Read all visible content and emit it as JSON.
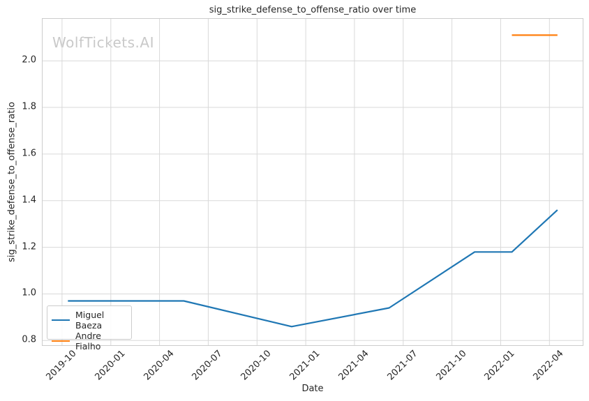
{
  "watermark": "WolfTickets.AI",
  "chart_data": {
    "type": "line",
    "title": "sig_strike_defense_to_offense_ratio over time",
    "xlabel": "Date",
    "ylabel": "sig_strike_defense_to_offense_ratio",
    "grid": true,
    "background": "#ffffff",
    "grid_color": "#d9d9d9",
    "spine_color": "#cccccc",
    "text_color": "#262626",
    "watermark_color": "#c9c9c9",
    "x_tick_labels": [
      "2019-10",
      "2020-01",
      "2020-04",
      "2020-07",
      "2020-10",
      "2021-01",
      "2021-04",
      "2021-07",
      "2021-10",
      "2022-01",
      "2022-04"
    ],
    "y_ticks": [
      0.8,
      1.0,
      1.2,
      1.4,
      1.6,
      1.8,
      2.0
    ],
    "ylim": [
      0.78,
      2.18
    ],
    "xlim_months_from_2019_10": [
      -1.2,
      32.05
    ],
    "legend": {
      "position": "lower left",
      "entries": [
        "Miguel Baeza",
        "Andre Fialho"
      ]
    },
    "series": [
      {
        "name": "Miguel Baeza",
        "color": "#1f77b4",
        "points": [
          [
            "2019-10-12",
            0.97
          ],
          [
            "2020-05-16",
            0.97
          ],
          [
            "2020-12-05",
            0.86
          ],
          [
            "2021-06-05",
            0.94
          ],
          [
            "2021-11-13",
            1.18
          ],
          [
            "2022-01-22",
            1.18
          ],
          [
            "2022-04-16",
            1.36
          ]
        ]
      },
      {
        "name": "Andre Fialho",
        "color": "#ff7f0e",
        "points": [
          [
            "2022-01-22",
            2.11
          ],
          [
            "2022-04-16",
            2.11
          ]
        ]
      }
    ]
  }
}
